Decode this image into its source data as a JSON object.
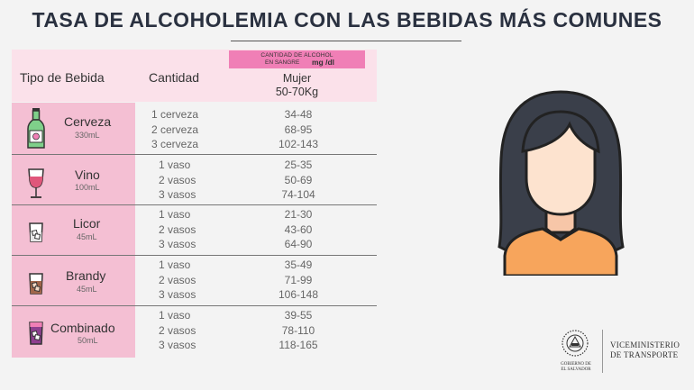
{
  "title": "TASA DE ALCOHOLEMIA CON LAS BEBIDAS MÁS COMUNES",
  "header": {
    "col_type": "Tipo de Bebida",
    "col_qty": "Cantidad",
    "alcohol_label_line1": "CANTIDAD DE ALCOHOL",
    "alcohol_label_line2": "EN SANGRE",
    "alcohol_unit": "mg /dl",
    "group_line1": "Mujer",
    "group_line2": "50-70Kg"
  },
  "rows": [
    {
      "name": "Cerveza",
      "volume": "330mL",
      "quantities": [
        "1 cerveza",
        "2 cerveza",
        "3 cerveza"
      ],
      "values": [
        "34-48",
        "68-95",
        "102-143"
      ]
    },
    {
      "name": "Vino",
      "volume": "100mL",
      "quantities": [
        "1 vaso",
        "2 vasos",
        "3 vasos"
      ],
      "values": [
        "25-35",
        "50-69",
        "74-104"
      ]
    },
    {
      "name": "Licor",
      "volume": "45mL",
      "quantities": [
        "1 vaso",
        "2 vasos",
        "3 vasos"
      ],
      "values": [
        "21-30",
        "43-60",
        "64-90"
      ]
    },
    {
      "name": "Brandy",
      "volume": "45mL",
      "quantities": [
        "1 vaso",
        "2 vasos",
        "3 vasos"
      ],
      "values": [
        "35-49",
        "71-99",
        "106-148"
      ]
    },
    {
      "name": "Combinado",
      "volume": "50mL",
      "quantities": [
        "1 vaso",
        "2 vasos",
        "3 vasos"
      ],
      "values": [
        "39-55",
        "78-110",
        "118-165"
      ]
    }
  ],
  "footer": {
    "gov_line1": "GOBIERNO DE",
    "gov_line2": "EL SALVADOR",
    "vice_line1": "VICEMINISTERIO",
    "vice_line2": "DE TRANSPORTE"
  },
  "colors": {
    "header_band": "#fbe1ea",
    "left_column": "#f4bfd3",
    "pink_label": "#f07fb6",
    "shirt": "#f7a55c",
    "hair": "#3a3f4a",
    "skin": "#fde3cf"
  },
  "icons": [
    "beer-bottle-icon",
    "wine-glass-icon",
    "liquor-glass-icon",
    "brandy-glass-icon",
    "mixed-drink-icon",
    "woman-avatar-icon",
    "government-seal-icon"
  ]
}
